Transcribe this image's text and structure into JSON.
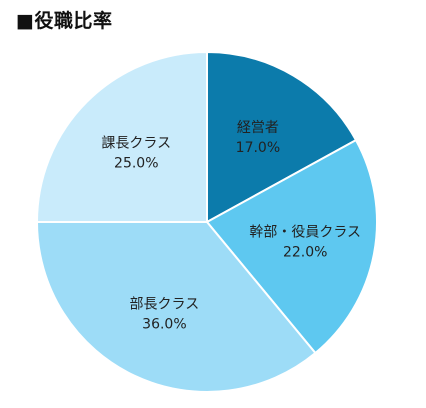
{
  "chart_data": {
    "type": "pie",
    "title": "■役職比率",
    "start_angle_deg": 0,
    "direction": "clockwise",
    "slices": [
      {
        "label": "経営者",
        "value": 17.0,
        "value_text": "17.0%",
        "color": "#0c7bab"
      },
      {
        "label": "幹部・役員クラス",
        "value": 22.0,
        "value_text": "22.0%",
        "color": "#5ec8f0"
      },
      {
        "label": "部長クラス",
        "value": 36.0,
        "value_text": "36.0%",
        "color": "#9ddcf7"
      },
      {
        "label": "課長クラス",
        "value": 25.0,
        "value_text": "25.0%",
        "color": "#c9ebfb"
      }
    ]
  }
}
